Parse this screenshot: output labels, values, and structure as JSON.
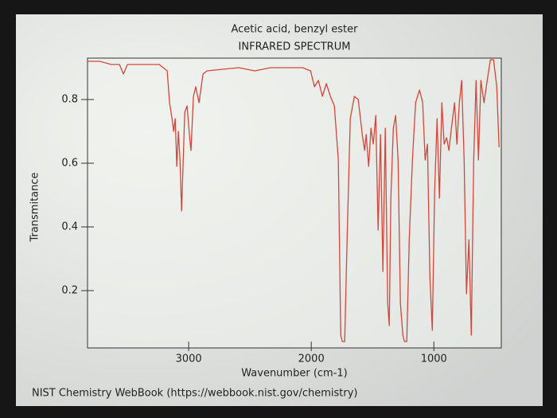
{
  "chart_data": {
    "type": "line",
    "title": "Acetic acid, benzyl ester",
    "subtitle": "INFRARED SPECTRUM",
    "x_label": "Wavenumber (cm-1)",
    "y_label": "Transmitance",
    "footer": "NIST Chemistry WebBook (https://webbook.nist.gov/chemistry)",
    "color": "#d2473a",
    "xlim": [
      3825,
      450
    ],
    "ylim": [
      0.02,
      0.93
    ],
    "xticks": [
      3000,
      2000,
      1000
    ],
    "yticks": [
      0.2,
      0.4,
      0.6,
      0.8
    ],
    "x": [
      3825,
      3727,
      3630,
      3565,
      3532,
      3500,
      3240,
      3175,
      3156,
      3136,
      3123,
      3110,
      3097,
      3084,
      3071,
      3058,
      3032,
      3013,
      2994,
      2981,
      2961,
      2942,
      2916,
      2883,
      2851,
      2591,
      2461,
      2331,
      2071,
      2006,
      1974,
      1942,
      1909,
      1877,
      1844,
      1812,
      1779,
      1760,
      1747,
      1727,
      1708,
      1682,
      1649,
      1617,
      1584,
      1565,
      1552,
      1532,
      1513,
      1494,
      1474,
      1455,
      1435,
      1416,
      1396,
      1377,
      1364,
      1351,
      1331,
      1312,
      1292,
      1273,
      1253,
      1240,
      1221,
      1201,
      1175,
      1149,
      1117,
      1091,
      1071,
      1052,
      1032,
      1013,
      994,
      974,
      955,
      935,
      916,
      896,
      877,
      857,
      831,
      812,
      792,
      773,
      753,
      734,
      714,
      695,
      675,
      656,
      636,
      617,
      591,
      565,
      539,
      513,
      487,
      468
    ],
    "values": [
      0.92,
      0.92,
      0.91,
      0.91,
      0.88,
      0.91,
      0.91,
      0.89,
      0.79,
      0.74,
      0.7,
      0.74,
      0.59,
      0.7,
      0.61,
      0.45,
      0.76,
      0.78,
      0.69,
      0.64,
      0.81,
      0.84,
      0.79,
      0.88,
      0.89,
      0.9,
      0.89,
      0.9,
      0.9,
      0.89,
      0.84,
      0.86,
      0.81,
      0.85,
      0.81,
      0.78,
      0.61,
      0.06,
      0.04,
      0.04,
      0.36,
      0.74,
      0.81,
      0.8,
      0.69,
      0.64,
      0.69,
      0.59,
      0.71,
      0.66,
      0.75,
      0.39,
      0.69,
      0.26,
      0.71,
      0.16,
      0.09,
      0.49,
      0.71,
      0.75,
      0.61,
      0.16,
      0.06,
      0.04,
      0.04,
      0.36,
      0.61,
      0.79,
      0.83,
      0.79,
      0.61,
      0.66,
      0.24,
      0.075,
      0.51,
      0.74,
      0.49,
      0.79,
      0.66,
      0.68,
      0.64,
      0.71,
      0.79,
      0.66,
      0.79,
      0.86,
      0.61,
      0.19,
      0.36,
      0.06,
      0.61,
      0.86,
      0.61,
      0.86,
      0.79,
      0.86,
      0.925,
      0.925,
      0.84,
      0.65
    ]
  }
}
